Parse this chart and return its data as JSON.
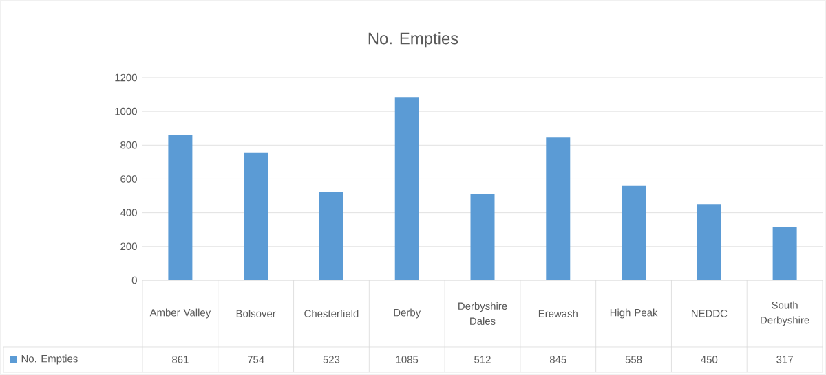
{
  "chart_data": {
    "type": "bar",
    "title": "No. Empties",
    "categories": [
      "Amber Valley",
      "Bolsover",
      "Chesterfield",
      "Derby",
      "Derbyshire Dales",
      "Erewash",
      "High Peak",
      "NEDDC",
      "South Derbyshire"
    ],
    "series": [
      {
        "name": "No. Empties",
        "color": "#5b9bd5",
        "values": [
          861,
          754,
          523,
          1085,
          512,
          845,
          558,
          450,
          317
        ]
      }
    ],
    "ylim": [
      0,
      1200
    ],
    "yticks": [
      0,
      200,
      400,
      600,
      800,
      1000,
      1200
    ],
    "grid": "y",
    "legend": "bottom",
    "data_labels": true
  }
}
